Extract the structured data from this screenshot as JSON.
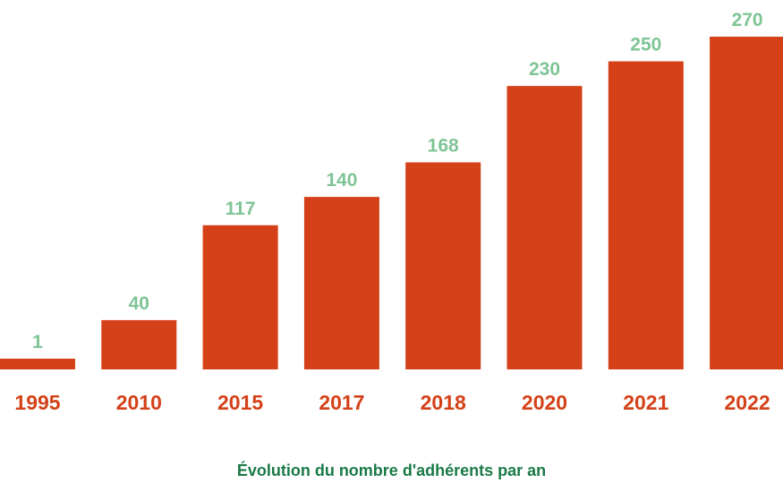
{
  "chart_data": {
    "type": "bar",
    "categories": [
      "1995",
      "2010",
      "2015",
      "2017",
      "2018",
      "2020",
      "2021",
      "2022"
    ],
    "values": [
      1,
      40,
      117,
      140,
      168,
      230,
      250,
      270
    ],
    "caption": "Évolution du nombre d'adhérents par an",
    "xlabel": "",
    "ylabel": "",
    "ylim": [
      0,
      270
    ],
    "grid": false,
    "legend": "none",
    "colors": {
      "bar": "#d44118",
      "value_label": "#7fc495",
      "category_label": "#d44118",
      "caption": "#1a7a47"
    }
  }
}
